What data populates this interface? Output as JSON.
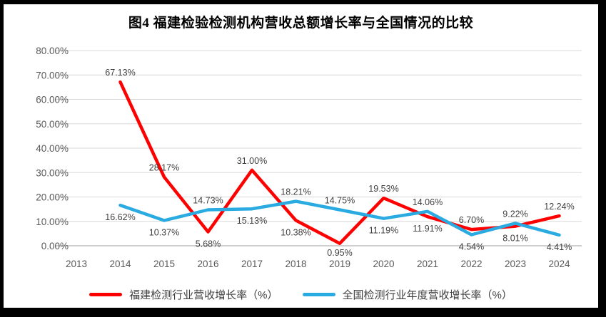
{
  "chart_data": {
    "type": "line",
    "title": "图4 福建检验检测机构营收总额增长率与全国情况的比较",
    "categories": [
      "2013",
      "2014",
      "2015",
      "2016",
      "2017",
      "2018",
      "2019",
      "2020",
      "2021",
      "2022",
      "2023",
      "2024"
    ],
    "series": [
      {
        "name": "福建检测行业营收增长率（%）",
        "color": "#FF0000",
        "values": [
          null,
          67.13,
          28.17,
          5.68,
          31.0,
          10.38,
          0.95,
          19.53,
          11.91,
          6.7,
          8.01,
          12.24
        ]
      },
      {
        "name": "全国检测行业年度营收增长率（%）",
        "color": "#29ABE2",
        "values": [
          null,
          16.62,
          10.37,
          14.73,
          15.13,
          18.21,
          14.75,
          11.19,
          14.06,
          4.54,
          9.22,
          4.41
        ]
      }
    ],
    "ylim": [
      0,
      80
    ],
    "ytick_step": 10,
    "ytick_labels": [
      "0.00%",
      "10.00%",
      "20.00%",
      "30.00%",
      "40.00%",
      "50.00%",
      "60.00%",
      "70.00%",
      "80.00%"
    ],
    "data_label_format": "two-decimal-percent",
    "grid": true,
    "legend_position": "bottom",
    "colors": {
      "gridline": "#D9D9D9",
      "axis_line": "#BFBFBF",
      "tick_text": "#595959",
      "data_label_text": "#404040",
      "frame": "#000000",
      "plot_background": "#FFFFFF"
    }
  }
}
